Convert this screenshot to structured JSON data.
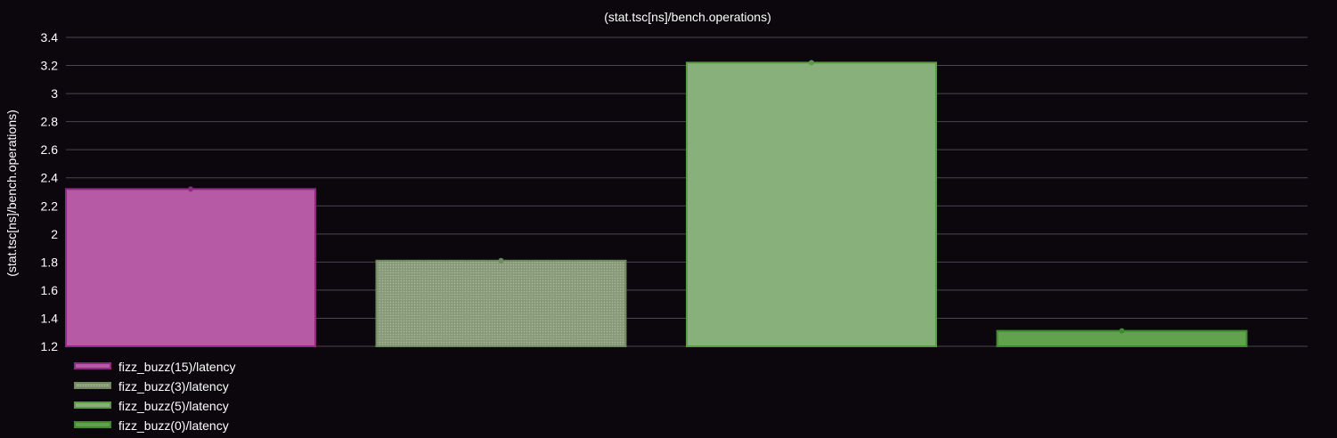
{
  "chart_data": {
    "type": "bar",
    "title": "(stat.tsc[ns]/bench.operations)",
    "ylabel": "(stat.tsc[ns]/bench.operations)",
    "ylim": [
      1.2,
      3.4
    ],
    "yticks": [
      "1.2",
      "1.4",
      "1.6",
      "1.8",
      "2",
      "2.2",
      "2.4",
      "2.6",
      "2.8",
      "3",
      "3.2",
      "3.4"
    ],
    "grid": true,
    "legend_position": "bottom-left",
    "series": [
      {
        "name": "fizz_buzz(15)/latency",
        "value": 2.32,
        "fill": "#b65aa5",
        "stroke": "#8e2a83",
        "pattern": "solid"
      },
      {
        "name": "fizz_buzz(3)/latency",
        "value": 1.81,
        "fill": "#8e9f80",
        "stroke": "#6e8a5e",
        "pattern": "dotted"
      },
      {
        "name": "fizz_buzz(5)/latency",
        "value": 3.22,
        "fill": "#88b07a",
        "stroke": "#5a9a42",
        "pattern": "solid"
      },
      {
        "name": "fizz_buzz(0)/latency",
        "value": 1.31,
        "fill": "#62a24f",
        "stroke": "#3f8a2e",
        "pattern": "solid"
      }
    ]
  }
}
